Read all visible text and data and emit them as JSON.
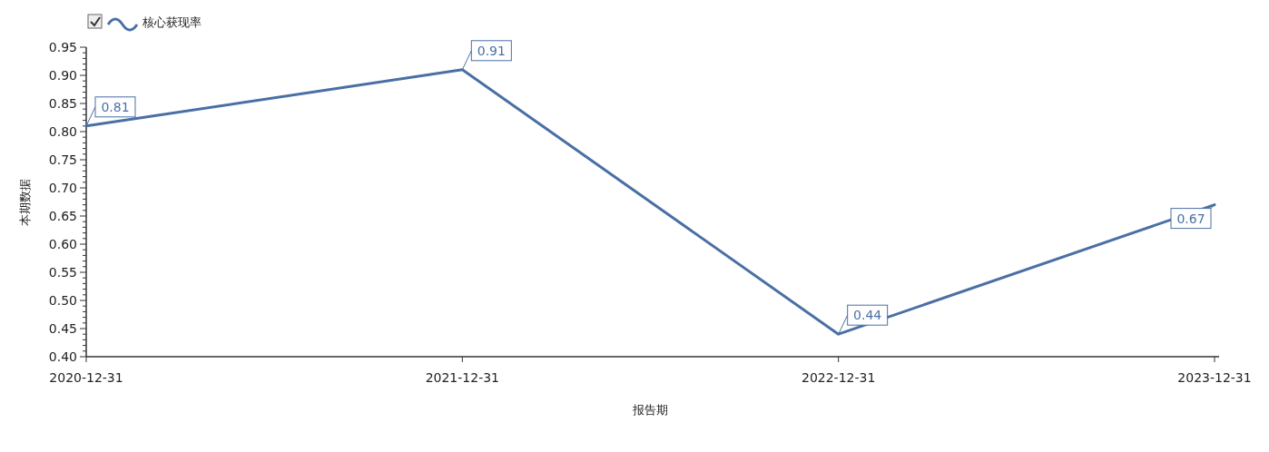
{
  "chart_data": {
    "type": "line",
    "xlabel": "报告期",
    "ylabel": "本期数据",
    "categories": [
      "2020-12-31",
      "2021-12-31",
      "2022-12-31",
      "2023-12-31"
    ],
    "series": [
      {
        "name": "核心获现率",
        "color": "#4a6fa5",
        "values": [
          0.81,
          0.91,
          0.44,
          0.67
        ]
      }
    ],
    "ylim": [
      0.4,
      0.95
    ],
    "yticks": [
      {
        "value": 0.4,
        "label": "0.40"
      },
      {
        "value": 0.45,
        "label": "0.45"
      },
      {
        "value": 0.5,
        "label": "0.50"
      },
      {
        "value": 0.55,
        "label": "0.55"
      },
      {
        "value": 0.6,
        "label": "0.60"
      },
      {
        "value": 0.65,
        "label": "0.65"
      },
      {
        "value": 0.7,
        "label": "0.70"
      },
      {
        "value": 0.75,
        "label": "0.75"
      },
      {
        "value": 0.8,
        "label": "0.80"
      },
      {
        "value": 0.85,
        "label": "0.85"
      },
      {
        "value": 0.9,
        "label": "0.90"
      },
      {
        "value": 0.95,
        "label": "0.95"
      }
    ],
    "legend": "top left",
    "data_labels": true
  }
}
